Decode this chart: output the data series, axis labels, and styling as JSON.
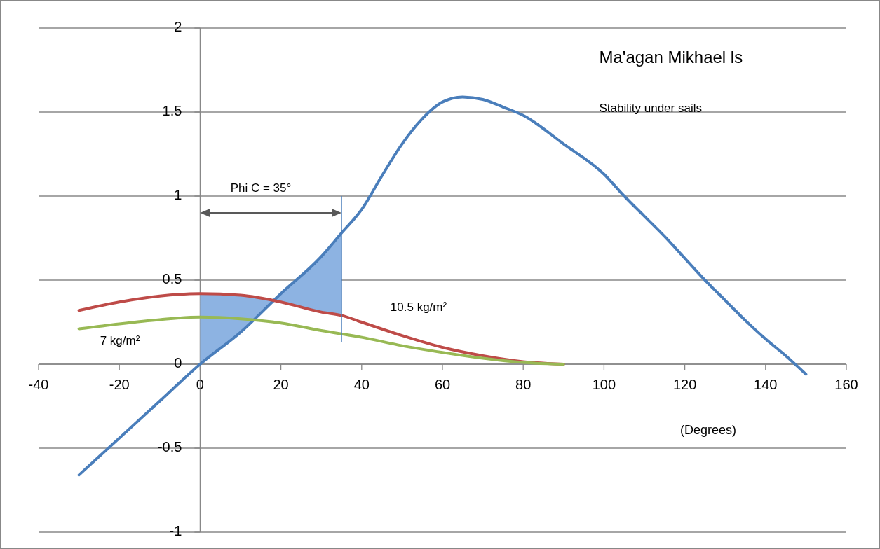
{
  "chart_data": {
    "type": "line",
    "title": "Ma'agan Mikhael ls",
    "subtitle": "Stability under sails",
    "xlabel": "(Degrees)",
    "xlim": [
      -40,
      160
    ],
    "xticks": [
      -40,
      -20,
      0,
      20,
      40,
      60,
      80,
      100,
      120,
      140,
      160
    ],
    "ylim": [
      -1,
      2
    ],
    "yticks": [
      -1,
      -0.5,
      0,
      0.5,
      1,
      1.5,
      2
    ],
    "grid": "y",
    "marker": "none",
    "line_style": "solid",
    "series": [
      {
        "color": "#4a7ebb",
        "x": [
          -30,
          -20,
          -10,
          0,
          10,
          20,
          30,
          35,
          40,
          45,
          50,
          55,
          60,
          65,
          70,
          75,
          80,
          90,
          100,
          105,
          110,
          115,
          120,
          125,
          130,
          135,
          140,
          145,
          150
        ],
        "values": [
          -0.66,
          -0.44,
          -0.22,
          0,
          0.19,
          0.42,
          0.64,
          0.78,
          0.92,
          1.12,
          1.31,
          1.46,
          1.56,
          1.59,
          1.575,
          1.53,
          1.48,
          1.31,
          1.13,
          1.0,
          0.88,
          0.76,
          0.63,
          0.5,
          0.38,
          0.26,
          0.15,
          0.05,
          -0.06
        ]
      },
      {
        "color": "#be4b48",
        "x": [
          -30,
          -20,
          -10,
          0,
          10,
          20,
          30,
          35,
          40,
          50,
          60,
          70,
          80,
          90
        ],
        "values": [
          0.32,
          0.37,
          0.405,
          0.42,
          0.41,
          0.37,
          0.31,
          0.29,
          0.25,
          0.17,
          0.1,
          0.05,
          0.015,
          0
        ]
      },
      {
        "color": "#98b954",
        "x": [
          -30,
          -20,
          -10,
          0,
          10,
          20,
          30,
          40,
          50,
          60,
          70,
          80,
          90
        ],
        "values": [
          0.21,
          0.24,
          0.265,
          0.28,
          0.27,
          0.245,
          0.2,
          0.16,
          0.11,
          0.07,
          0.035,
          0.01,
          0
        ]
      }
    ],
    "ref_lines": [
      {
        "axis": "x",
        "value": 35,
        "color": "#4a7ebb"
      }
    ],
    "annotations": [
      "Phi C = 35°",
      "10.5 kg/m²",
      "7 kg/m²"
    ]
  }
}
